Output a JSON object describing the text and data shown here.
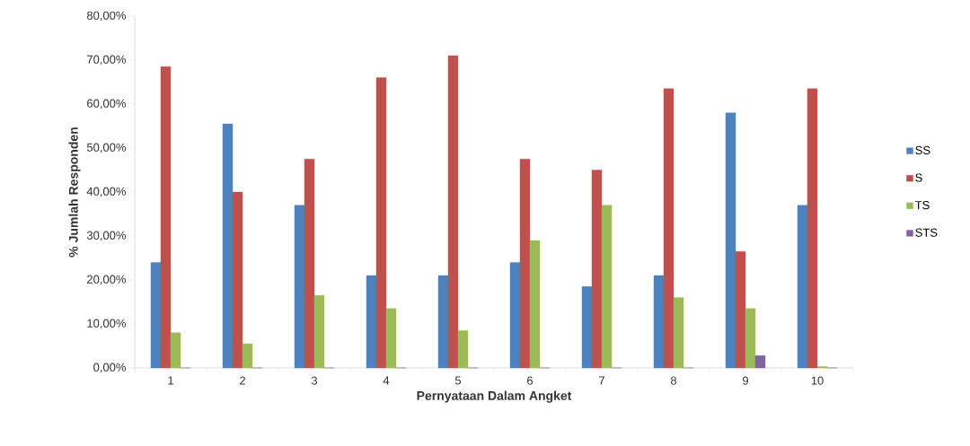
{
  "chart_data": {
    "type": "bar",
    "xlabel": "Pernyataan Dalam Angket",
    "ylabel": "% Jumlah Responden",
    "categories": [
      "1",
      "2",
      "3",
      "4",
      "5",
      "6",
      "7",
      "8",
      "9",
      "10"
    ],
    "series": [
      {
        "name": "SS",
        "color": "#4f81bd",
        "values": [
          24,
          55.5,
          37,
          21,
          21,
          24,
          18.5,
          21,
          58,
          37
        ]
      },
      {
        "name": "S",
        "color": "#c0504d",
        "values": [
          68.5,
          40,
          47.5,
          66,
          71,
          47.5,
          45,
          63.5,
          26.5,
          63.5
        ]
      },
      {
        "name": "TS",
        "color": "#9bbb59",
        "values": [
          8,
          5.5,
          16.5,
          13.5,
          8.5,
          29,
          37,
          16,
          13.5,
          0.3
        ]
      },
      {
        "name": "STS",
        "color": "#8064a2",
        "values": [
          0,
          0,
          0,
          0,
          0,
          0,
          0,
          0,
          2.8,
          0
        ]
      }
    ],
    "ylim": [
      0,
      80
    ],
    "yticks": [
      {
        "value": 0,
        "label": "0,00%"
      },
      {
        "value": 10,
        "label": "10,00%"
      },
      {
        "value": 20,
        "label": "20,00%"
      },
      {
        "value": 30,
        "label": "30,00%"
      },
      {
        "value": 40,
        "label": "40,00%"
      },
      {
        "value": 50,
        "label": "50,00%"
      },
      {
        "value": 60,
        "label": "60,00%"
      },
      {
        "value": 70,
        "label": "70,00%"
      },
      {
        "value": 80,
        "label": "80,00%"
      }
    ],
    "legend": "right"
  }
}
